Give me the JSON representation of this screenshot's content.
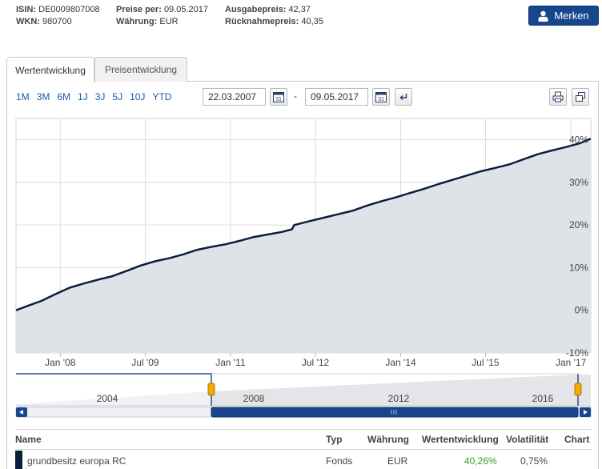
{
  "header": {
    "isin_label": "ISIN:",
    "isin": "DE0009807008",
    "wkn_label": "WKN:",
    "wkn": "980700",
    "preise_label": "Preise per:",
    "preise": "09.05.2017",
    "waehrung_label": "Währung:",
    "waehrung": "EUR",
    "ausgabe_label": "Ausgabepreis:",
    "ausgabe": "42,37",
    "ruecknahme_label": "Rücknahmepreis:",
    "ruecknahme": "40,35",
    "merken_label": "Merken"
  },
  "tabs": [
    {
      "label": "Wertentwicklung",
      "active": true
    },
    {
      "label": "Preisentwicklung",
      "active": false
    }
  ],
  "ranges": [
    "1M",
    "3M",
    "6M",
    "1J",
    "3J",
    "5J",
    "10J",
    "YTD"
  ],
  "date_from": "22.03.2007",
  "date_to": "09.05.2017",
  "date_separator": "-",
  "colors": {
    "line": "#0d1f40",
    "area": "#dfe2e7",
    "link": "#1b5ba6",
    "nav": "#17468c",
    "positive": "#3a9a2a"
  },
  "chart_data": {
    "type": "area",
    "x_tick_labels": [
      "Jan '08",
      "Jul '09",
      "Jan '11",
      "Jul '12",
      "Jan '14",
      "Jul '15",
      "Jan '17"
    ],
    "y_tick_labels": [
      "40%",
      "30%",
      "20%",
      "10%",
      "0%",
      "-10%"
    ],
    "ylim": [
      -10,
      45
    ],
    "xlim": [
      "2007-03-22",
      "2017-05-09"
    ],
    "grid": true,
    "series": [
      {
        "name": "grundbesitz europa RC",
        "points": [
          [
            "2007-03-22",
            0.0
          ],
          [
            "2007-06-01",
            1.0
          ],
          [
            "2007-09-01",
            2.2
          ],
          [
            "2007-12-01",
            3.8
          ],
          [
            "2008-03-01",
            5.3
          ],
          [
            "2008-06-01",
            6.3
          ],
          [
            "2008-09-01",
            7.2
          ],
          [
            "2008-12-01",
            8.0
          ],
          [
            "2009-03-01",
            9.2
          ],
          [
            "2009-06-01",
            10.5
          ],
          [
            "2009-09-01",
            11.5
          ],
          [
            "2009-12-01",
            12.2
          ],
          [
            "2010-03-01",
            13.1
          ],
          [
            "2010-06-01",
            14.2
          ],
          [
            "2010-09-01",
            14.9
          ],
          [
            "2010-12-01",
            15.5
          ],
          [
            "2011-03-01",
            16.3
          ],
          [
            "2011-06-01",
            17.2
          ],
          [
            "2011-09-01",
            17.8
          ],
          [
            "2011-12-01",
            18.4
          ],
          [
            "2012-02-01",
            19.0
          ],
          [
            "2012-02-15",
            20.0
          ],
          [
            "2012-06-01",
            21.0
          ],
          [
            "2012-09-01",
            21.8
          ],
          [
            "2012-12-01",
            22.6
          ],
          [
            "2013-03-01",
            23.4
          ],
          [
            "2013-06-01",
            24.6
          ],
          [
            "2013-09-01",
            25.6
          ],
          [
            "2013-12-01",
            26.5
          ],
          [
            "2014-03-01",
            27.5
          ],
          [
            "2014-06-01",
            28.5
          ],
          [
            "2014-09-01",
            29.6
          ],
          [
            "2014-12-01",
            30.6
          ],
          [
            "2015-03-01",
            31.6
          ],
          [
            "2015-06-01",
            32.6
          ],
          [
            "2015-09-01",
            33.4
          ],
          [
            "2015-12-01",
            34.2
          ],
          [
            "2016-03-01",
            35.4
          ],
          [
            "2016-06-01",
            36.6
          ],
          [
            "2016-09-01",
            37.5
          ],
          [
            "2016-12-01",
            38.3
          ],
          [
            "2017-03-01",
            39.2
          ],
          [
            "2017-05-09",
            40.26
          ]
        ]
      }
    ],
    "navigator_labels": [
      "2004",
      "2008",
      "2012",
      "2016"
    ]
  },
  "table": {
    "headers": {
      "name": "Name",
      "typ": "Typ",
      "waehrung": "Währung",
      "wert": "Wertentwicklung",
      "vola": "Volatilität",
      "chart": "Chart"
    },
    "rows": [
      {
        "name": "grundbesitz europa RC",
        "typ": "Fonds",
        "waehrung": "EUR",
        "wert": "40,26%",
        "vola": "0,75%"
      }
    ]
  }
}
